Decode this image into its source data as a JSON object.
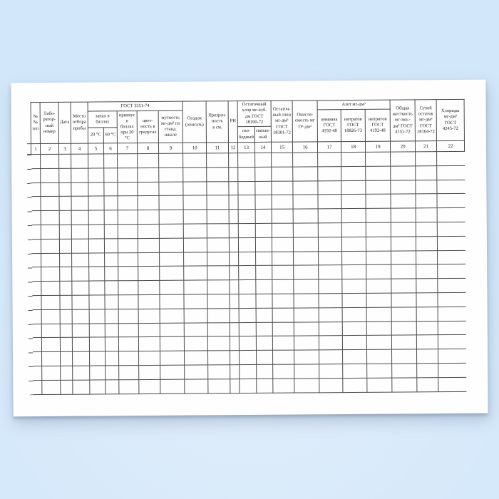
{
  "table": {
    "groups": {
      "gost": "ГОСТ 3351-74",
      "smell": "запах в\nбаллах",
      "residual_chlorine": "Остаточный\nхлор мг-куб.\nдм ГОСТ\n18190-72",
      "nitrogen": "Азот мг-дм³"
    },
    "headers": {
      "no": "№№\nп/п",
      "lab_number": "Лабо-\nратор-\nный\nномер",
      "date": "Дата",
      "sampling_place": "Место\nотбора\nпробы",
      "smell_20": "20 °С",
      "smell_60": "60 °С",
      "taste": "привкус\nв\nбаллах\nпри 20\n°С",
      "color": "цвет-\nность в\nградусах",
      "turbidity": "мутность\nмг-дм³ по\nстанд.\nшкале",
      "sediment": "Осадок\n(описать)",
      "transparency": "Прозрач-\nность\nв см.",
      "ph": "РН",
      "chlorine_free": "сво-\nбодный",
      "chlorine_bound": "связан-\nный",
      "ozone": "Остаточ-\nный озон\nмг-дм³\nГОСТ\n18301-72",
      "oxidability": "Окисля-\nемость мг\nО²-дм³",
      "ammonia": "аммиака\nГОСТ\n4192-48",
      "nitrates": "нитратов\nГОСТ\n18826-73",
      "nitrites": "нитритов\nГОСТ\n4192-48",
      "hardness": "Общая\nжесткость\nмг-экв.-\nдм³ ГОСТ\n4151-72",
      "dry_residue": "Сухой\nостаток\nмг-дм³\nГОСТ\n18164-72",
      "chlorides": "Хлориды\nмг-дм³\nГОСТ\n4245-72"
    },
    "column_numbers": [
      "1",
      "2",
      "3",
      "4",
      "5",
      "6",
      "7",
      "8",
      "9",
      "10",
      "11",
      "12",
      "13",
      "14",
      "15",
      "16",
      "17",
      "18",
      "19",
      "20",
      "21",
      "22"
    ],
    "body_row_count": 17,
    "colors": {
      "line": "#4a4a4a",
      "text": "#1b1b1b",
      "paper": "#fefefe",
      "background": "#d6e9fa"
    }
  }
}
